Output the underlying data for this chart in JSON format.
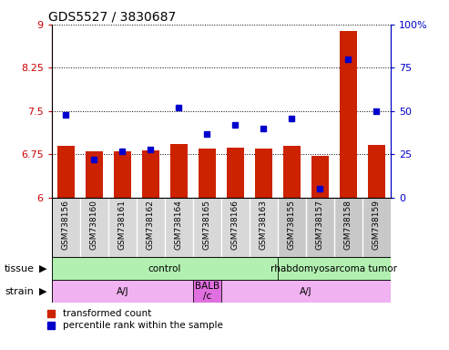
{
  "title": "GDS5527 / 3830687",
  "samples": [
    "GSM738156",
    "GSM738160",
    "GSM738161",
    "GSM738162",
    "GSM738164",
    "GSM738165",
    "GSM738166",
    "GSM738163",
    "GSM738155",
    "GSM738157",
    "GSM738158",
    "GSM738159"
  ],
  "red_values": [
    6.9,
    6.8,
    6.8,
    6.82,
    6.93,
    6.85,
    6.87,
    6.85,
    6.9,
    6.73,
    8.88,
    6.92
  ],
  "blue_values": [
    48,
    22,
    27,
    28,
    52,
    37,
    42,
    40,
    46,
    5,
    80,
    50
  ],
  "ylim_left": [
    6.0,
    9.0
  ],
  "ylim_right": [
    0,
    100
  ],
  "left_ticks": [
    6.0,
    6.75,
    7.5,
    8.25,
    9.0
  ],
  "right_ticks": [
    0,
    25,
    50,
    75,
    100
  ],
  "left_tick_labels": [
    "6",
    "6.75",
    "7.5",
    "8.25",
    "9"
  ],
  "right_tick_labels": [
    "0",
    "25",
    "50",
    "75",
    "100%"
  ],
  "tissue_groups": [
    {
      "label": "control",
      "start": 0,
      "end": 8,
      "color": "#b2f0b2"
    },
    {
      "label": "rhabdomyosarcoma tumor",
      "start": 8,
      "end": 12,
      "color": "#b2f0b2"
    }
  ],
  "strain_groups": [
    {
      "label": "A/J",
      "start": 0,
      "end": 5,
      "color": "#f0b2f0"
    },
    {
      "label": "BALB\n/c",
      "start": 5,
      "end": 6,
      "color": "#e070e0"
    },
    {
      "label": "A/J",
      "start": 6,
      "end": 12,
      "color": "#f0b2f0"
    }
  ],
  "bar_color_red": "#cc2200",
  "bar_color_blue": "#0000cc",
  "tick_label_color_left": "#cc0000",
  "tick_label_color_right": "#0000cc",
  "label_area_bg_control": "#d8d8d8",
  "label_area_bg_tumor": "#c8c8c8",
  "legend_red_label": "transformed count",
  "legend_blue_label": "percentile rank within the sample"
}
